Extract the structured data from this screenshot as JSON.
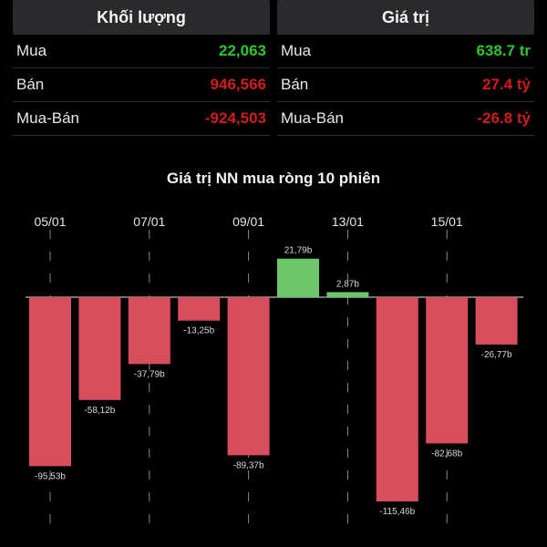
{
  "volume_panel": {
    "title": "Khối lượng",
    "rows": [
      {
        "label": "Mua",
        "value": "22,063",
        "color": "#2ec52e"
      },
      {
        "label": "Bán",
        "value": "946,566",
        "color": "#d01c1c"
      },
      {
        "label": "Mua-Bán",
        "value": "-924,503",
        "color": "#d01c1c"
      }
    ]
  },
  "value_panel": {
    "title": "Giá trị",
    "rows": [
      {
        "label": "Mua",
        "value": "638.7 tr",
        "color": "#2ec52e"
      },
      {
        "label": "Bán",
        "value": "27.4 tỷ",
        "color": "#d01c1c"
      },
      {
        "label": "Mua-Bán",
        "value": "-26.8 tỷ",
        "color": "#d01c1c"
      }
    ]
  },
  "colors": {
    "positive": "#6cc66a",
    "negative": "#d94e5c",
    "background": "#000000"
  },
  "chart_data": {
    "type": "bar",
    "title": "Giá trị NN mua ròng 10 phiên",
    "tick_labels": [
      "05/01",
      "07/01",
      "09/01",
      "13/01",
      "15/01"
    ],
    "values": [
      -95.53,
      -58.12,
      -37.79,
      -13.25,
      -89.37,
      21.79,
      2.87,
      -115.46,
      -82.68,
      -26.77
    ],
    "value_labels": [
      "-95,53b",
      "-58,12b",
      "-37,79b",
      "-13,25b",
      "-89,37b",
      "21,79b",
      "2,87b",
      "-115,46b",
      "-82,68b",
      "-26,77b"
    ],
    "ylim": [
      -115.46,
      21.79
    ]
  }
}
